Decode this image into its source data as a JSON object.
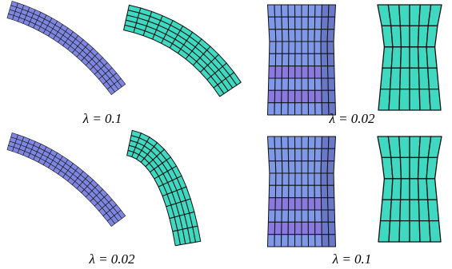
{
  "panels": [
    {
      "caption": "λ = 0.1"
    },
    {
      "caption": "λ = 0.02"
    },
    {
      "caption": "λ = 0.02"
    },
    {
      "caption": "λ = 0.1"
    }
  ]
}
